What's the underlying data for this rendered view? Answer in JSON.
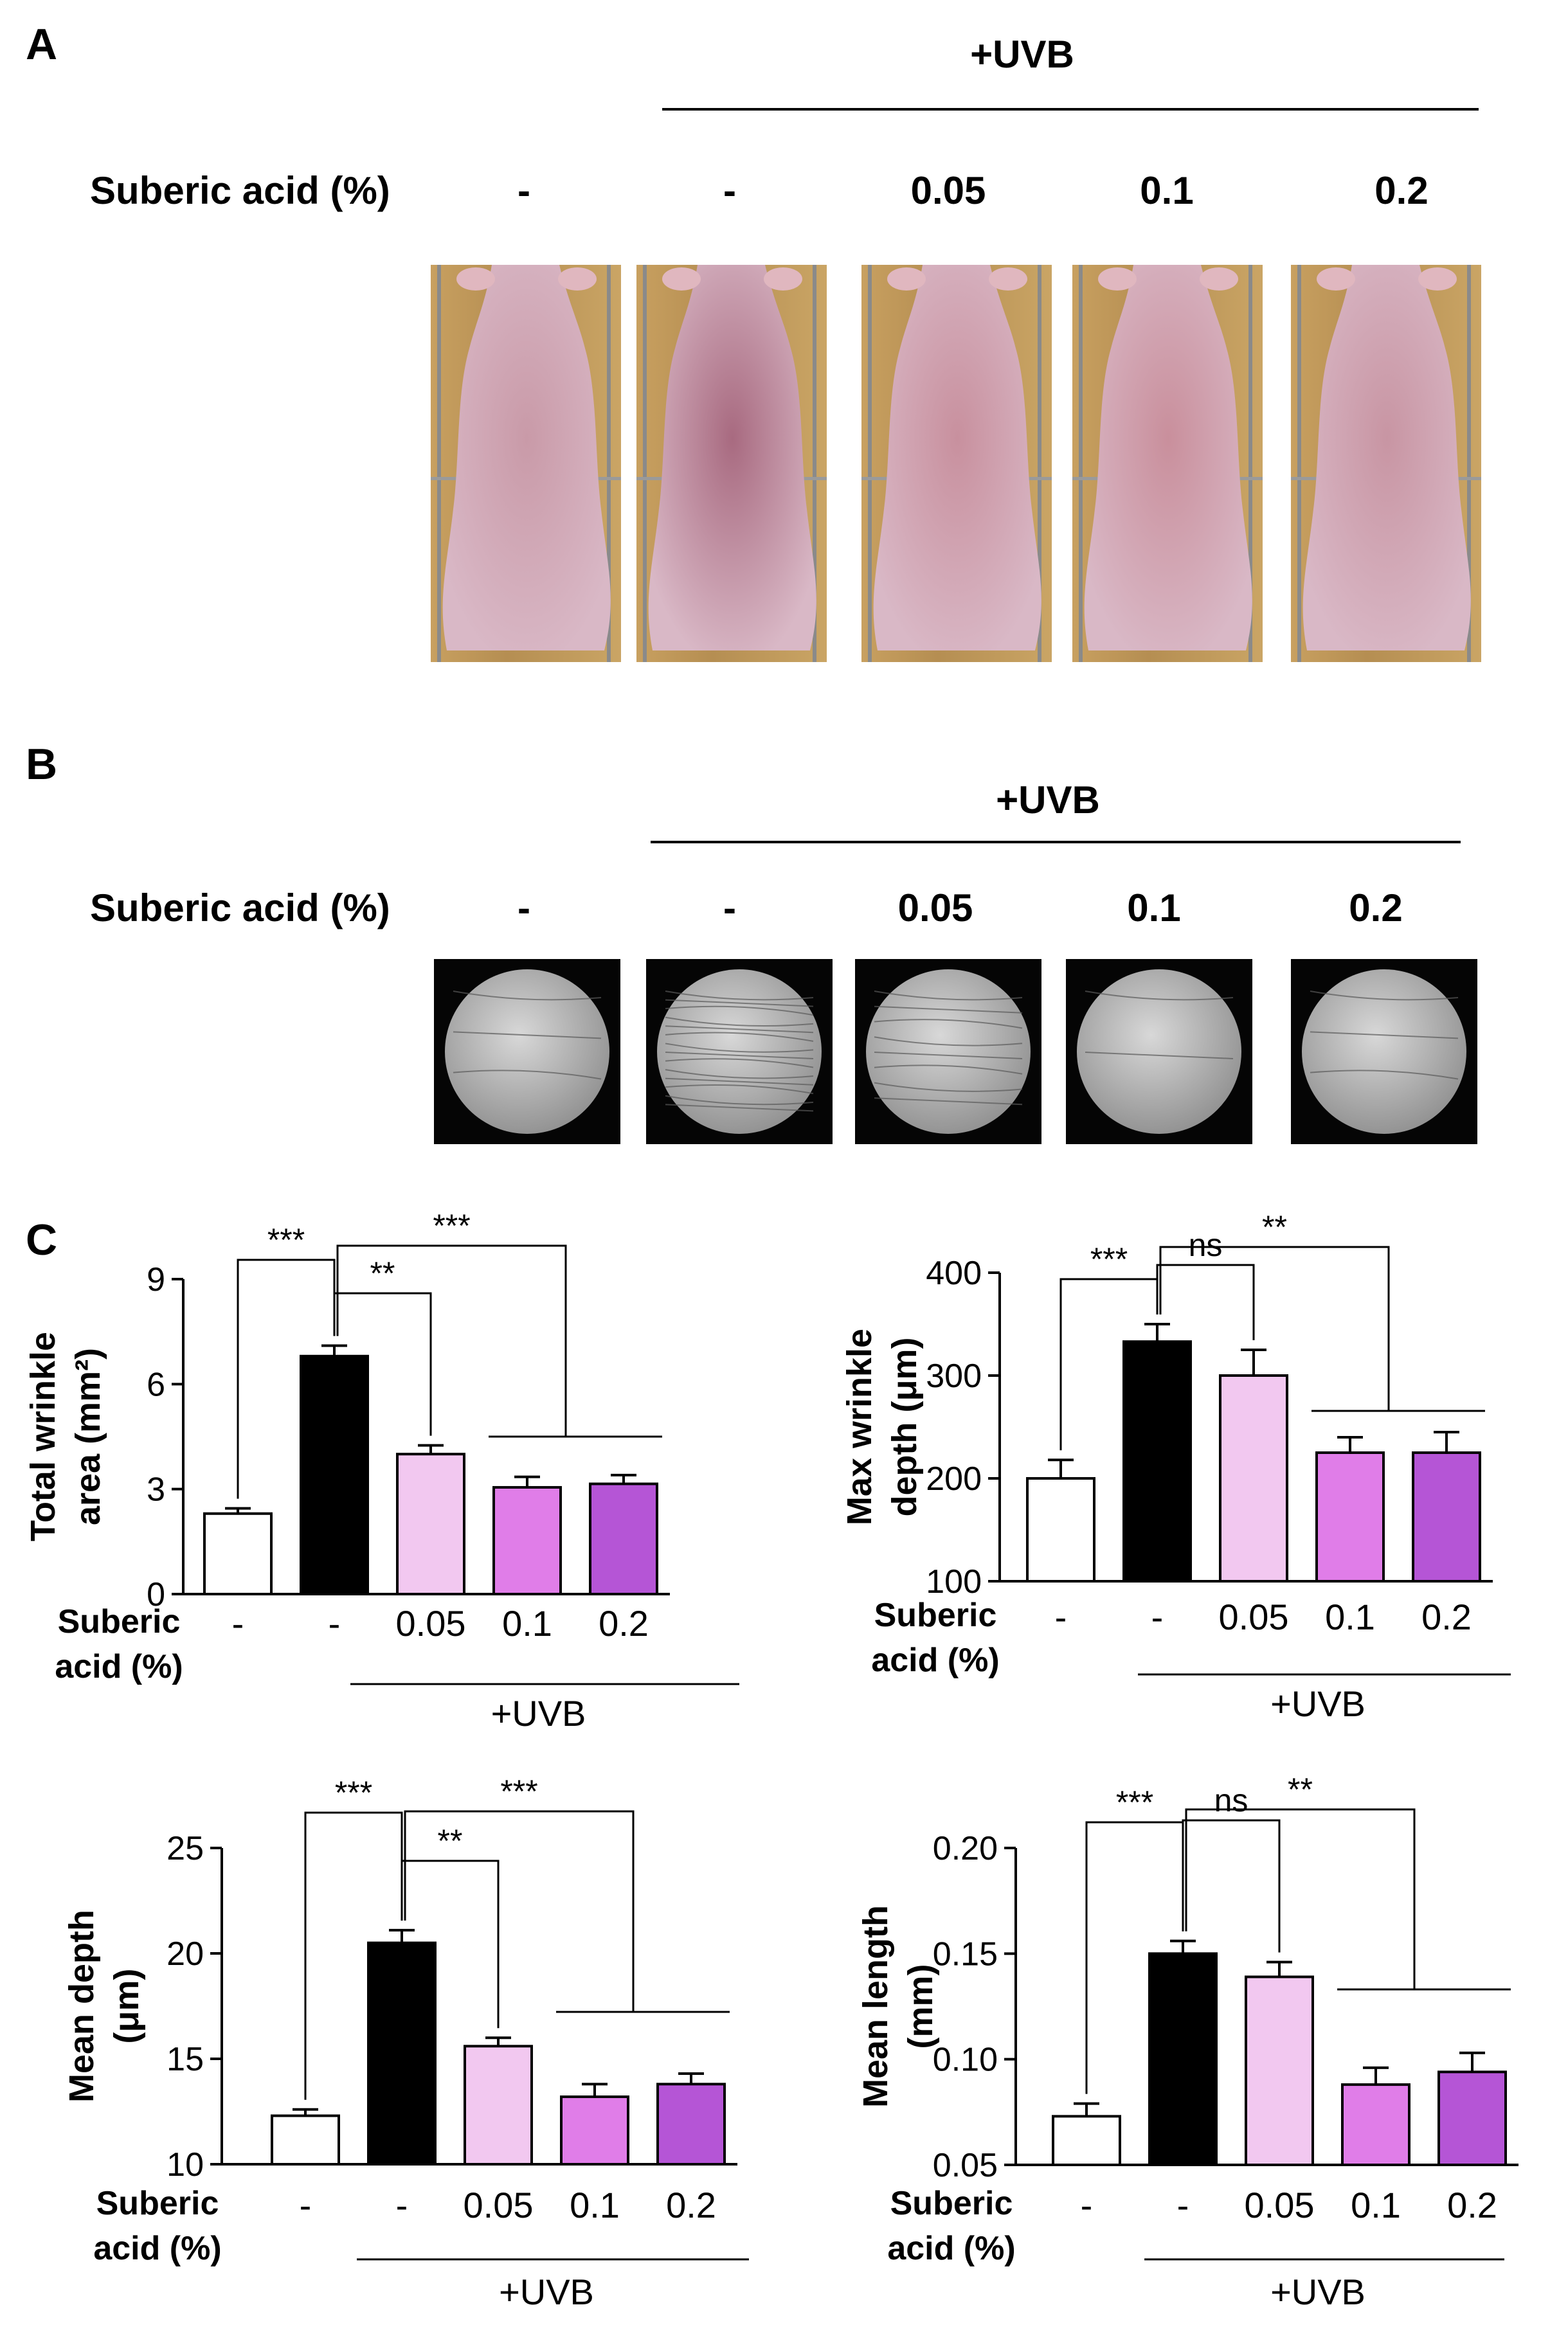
{
  "panel_a": {
    "letter": "A",
    "uvb_label": "+UVB",
    "row_label": "Suberic acid (%)",
    "columns": [
      "-",
      "-",
      "0.05",
      "0.1",
      "0.2"
    ]
  },
  "panel_b": {
    "letter": "B",
    "uvb_label": "+UVB",
    "row_label": "Suberic acid (%)",
    "columns": [
      "-",
      "-",
      "0.05",
      "0.1",
      "0.2"
    ]
  },
  "panel_c": {
    "letter": "C"
  },
  "colors": {
    "control": "#ffffff",
    "uvb_only": "#000000",
    "sa_005": "#f2c8f0",
    "sa_01": "#e07de8",
    "sa_02": "#b555d6"
  },
  "chart_data": [
    {
      "type": "bar",
      "ylabel_lines": [
        "Total wrinkle",
        "area (mm²)"
      ],
      "categories": [
        "-",
        "-",
        "0.05",
        "0.1",
        "0.2"
      ],
      "values": [
        2.3,
        6.8,
        4.0,
        3.05,
        3.15
      ],
      "errors": [
        0.15,
        0.3,
        0.25,
        0.3,
        0.25
      ],
      "ylim": [
        0,
        9
      ],
      "yticks": [
        "0",
        "3",
        "6",
        "9"
      ],
      "xrow_label": [
        "Suberic",
        "acid (%)"
      ],
      "treatment_label": "+UVB",
      "significance": [
        {
          "label": "***",
          "between": "control vs UVB"
        },
        {
          "label": "**",
          "between": "UVB vs 0.05"
        },
        {
          "label": "***",
          "between": "UVB vs 0.1 & 0.2"
        }
      ]
    },
    {
      "type": "bar",
      "ylabel_lines": [
        "Max wrinkle",
        "depth (μm)"
      ],
      "categories": [
        "-",
        "-",
        "0.05",
        "0.1",
        "0.2"
      ],
      "values": [
        200,
        333,
        300,
        225,
        225
      ],
      "errors": [
        18,
        17,
        25,
        15,
        20
      ],
      "ylim": [
        100,
        400
      ],
      "yticks": [
        "100",
        "200",
        "300",
        "400"
      ],
      "xrow_label": [
        "Suberic",
        "acid (%)"
      ],
      "treatment_label": "+UVB",
      "significance": [
        {
          "label": "***",
          "between": "control vs UVB"
        },
        {
          "label": "ns",
          "between": "UVB vs 0.05"
        },
        {
          "label": "**",
          "between": "UVB vs 0.1 & 0.2"
        }
      ]
    },
    {
      "type": "bar",
      "ylabel_lines": [
        "Mean depth",
        "(μm)"
      ],
      "categories": [
        "-",
        "-",
        "0.05",
        "0.1",
        "0.2"
      ],
      "values": [
        12.3,
        20.5,
        15.6,
        13.2,
        13.8
      ],
      "errors": [
        0.3,
        0.6,
        0.4,
        0.6,
        0.5
      ],
      "ylim": [
        10,
        25
      ],
      "yticks": [
        "10",
        "15",
        "20",
        "25"
      ],
      "xrow_label": [
        "Suberic",
        "acid (%)"
      ],
      "treatment_label": "+UVB",
      "significance": [
        {
          "label": "***",
          "between": "control vs UVB"
        },
        {
          "label": "**",
          "between": "UVB vs 0.05"
        },
        {
          "label": "***",
          "between": "UVB vs 0.1 & 0.2"
        }
      ]
    },
    {
      "type": "bar",
      "ylabel_lines": [
        "Mean length",
        "(mm)"
      ],
      "categories": [
        "-",
        "-",
        "0.05",
        "0.1",
        "0.2"
      ],
      "values": [
        0.073,
        0.15,
        0.139,
        0.088,
        0.094
      ],
      "errors": [
        0.006,
        0.006,
        0.007,
        0.008,
        0.009
      ],
      "ylim": [
        0.05,
        0.2
      ],
      "yticks": [
        "0.05",
        "0.10",
        "0.15",
        "0.20"
      ],
      "xrow_label": [
        "Suberic",
        "acid (%)"
      ],
      "treatment_label": "+UVB",
      "significance": [
        {
          "label": "***",
          "between": "control vs UVB"
        },
        {
          "label": "ns",
          "between": "UVB vs 0.05"
        },
        {
          "label": "**",
          "between": "UVB vs 0.1 & 0.2"
        }
      ]
    }
  ]
}
